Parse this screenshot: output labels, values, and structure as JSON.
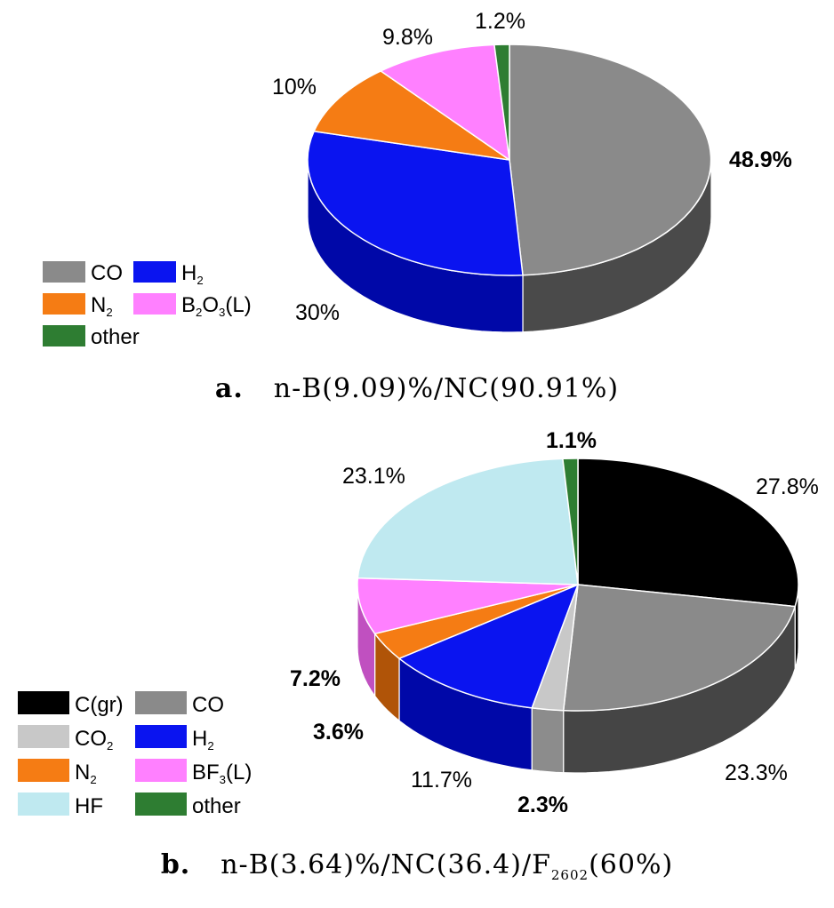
{
  "chart_data": [
    {
      "type": "pie",
      "panel_label": "a.",
      "caption": "n-B(9.09)%/NC(90.91%)",
      "slices": [
        {
          "name": "CO",
          "value": 48.9,
          "label": "48.9%",
          "color": "#8a8a8a",
          "side": "#4a4a4a"
        },
        {
          "name": "H2",
          "value": 30,
          "label": "30%",
          "color": "#0a14f0",
          "side": "#0008a8"
        },
        {
          "name": "N2",
          "value": 10,
          "label": "10%",
          "color": "#f57c14",
          "side": "#b05408"
        },
        {
          "name": "B2O3(L)",
          "value": 9.8,
          "label": "9.8%",
          "color": "#ff80ff",
          "side": "#c050c0"
        },
        {
          "name": "other",
          "value": 1.2,
          "label": "1.2%",
          "color": "#2e7d32",
          "side": "#1b5a1e"
        }
      ],
      "legend": [
        {
          "text": "CO",
          "sub": "",
          "tail": "",
          "color": "#8a8a8a"
        },
        {
          "text": "H",
          "sub": "2",
          "tail": "",
          "color": "#0a14f0"
        },
        {
          "text": "N",
          "sub": "2",
          "tail": "",
          "color": "#f57c14"
        },
        {
          "text": "B",
          "sub": "2",
          "mid": "O",
          "sub2": "3",
          "tail": "(L)",
          "color": "#ff80ff"
        },
        {
          "text": "other",
          "sub": "",
          "tail": "",
          "color": "#2e7d32"
        }
      ]
    },
    {
      "type": "pie",
      "panel_label": "b.",
      "caption_parts": [
        "n-B(3.64)%/NC(36.4)/F",
        "2602",
        "(60%)"
      ],
      "slices": [
        {
          "name": "C(gr)",
          "value": 27.8,
          "label": "27.8%",
          "color": "#000000",
          "side": "#000000"
        },
        {
          "name": "CO",
          "value": 23.3,
          "label": "23.3%",
          "color": "#8a8a8a",
          "side": "#454545"
        },
        {
          "name": "CO2",
          "value": 2.3,
          "label": "2.3%",
          "color": "#c8c8c8",
          "side": "#8c8c8c"
        },
        {
          "name": "H2",
          "value": 11.7,
          "label": "11.7%",
          "color": "#0a14f0",
          "side": "#0008a8"
        },
        {
          "name": "N2",
          "value": 3.6,
          "label": "3.6%",
          "color": "#f57c14",
          "side": "#b05408"
        },
        {
          "name": "BF3(L)",
          "value": 7.2,
          "label": "7.2%",
          "color": "#ff80ff",
          "side": "#c050c0"
        },
        {
          "name": "HF",
          "value": 23.1,
          "label": "23.1%",
          "color": "#bfe9f0",
          "side": "#8fbcc4"
        },
        {
          "name": "other",
          "value": 1.1,
          "label": "1.1%",
          "color": "#2e7d32",
          "side": "#1b5a1e"
        }
      ],
      "legend": [
        {
          "text": "C(gr)",
          "sub": "",
          "tail": "",
          "color": "#000000"
        },
        {
          "text": "CO",
          "sub": "",
          "tail": "",
          "color": "#8a8a8a"
        },
        {
          "text": "CO",
          "sub": "2",
          "tail": "",
          "color": "#c8c8c8"
        },
        {
          "text": "H",
          "sub": "2",
          "tail": "",
          "color": "#0a14f0"
        },
        {
          "text": "N",
          "sub": "2",
          "tail": "",
          "color": "#f57c14"
        },
        {
          "text": "BF",
          "sub": "3",
          "tail": "(L)",
          "color": "#ff80ff"
        },
        {
          "text": "HF",
          "sub": "",
          "tail": "",
          "color": "#bfe9f0"
        },
        {
          "text": "other",
          "sub": "",
          "tail": "",
          "color": "#2e7d32"
        }
      ]
    }
  ]
}
